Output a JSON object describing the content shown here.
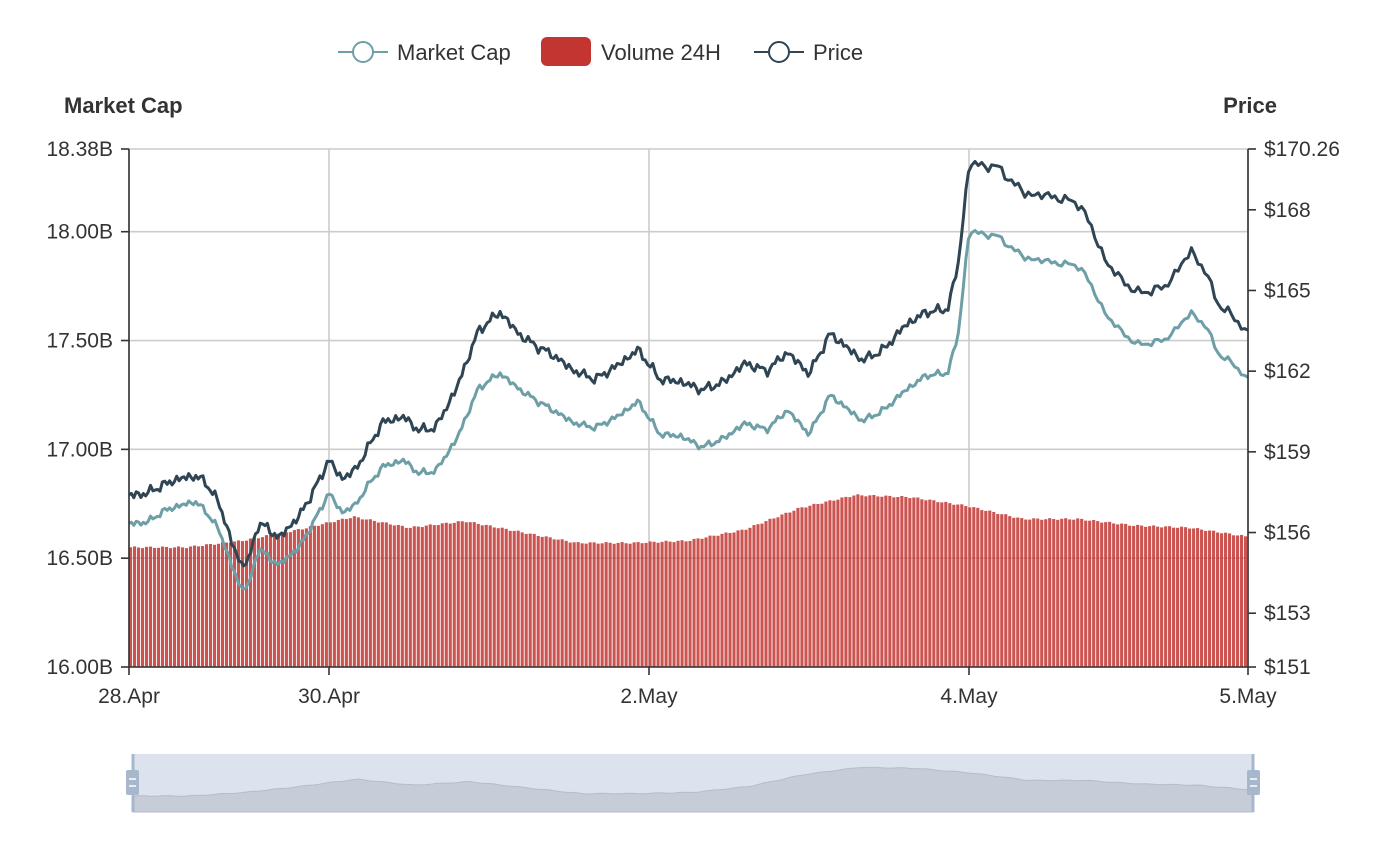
{
  "legend": {
    "market_cap_label": "Market Cap",
    "volume_label": "Volume 24H",
    "price_label": "Price"
  },
  "axes": {
    "left_title": "Market Cap",
    "right_title": "Price"
  },
  "colors": {
    "market_cap": "#6e9fa7",
    "volume": "#c23531",
    "price": "#2f4554",
    "grid": "#cccccc",
    "zoom_bg": "#dde3ee",
    "zoom_area": "#c6cdd8",
    "zoom_handle": "#a7b7cc"
  },
  "chart_data": {
    "type": "line",
    "title": "",
    "x_ticks": [
      "28.Apr",
      "30.Apr",
      "2.May",
      "4.May",
      "5.May"
    ],
    "y_left": {
      "ticks": [
        "18.38B",
        "18.00B",
        "17.50B",
        "17.00B",
        "16.50B",
        "16.00B"
      ],
      "min": 16.0,
      "max": 18.38,
      "unit": "B"
    },
    "y_right": {
      "ticks": [
        "$170.26",
        "$168",
        "$165",
        "$162",
        "$159",
        "$156",
        "$153",
        "$151"
      ],
      "min": 151.0,
      "max": 170.26
    },
    "grid": true,
    "legend_position": "top-center",
    "series": [
      {
        "name": "Market Cap",
        "type": "line",
        "axis": "left",
        "x_day": [
          0,
          0.05,
          0.1,
          0.18,
          0.25,
          0.33,
          0.38,
          0.45,
          0.52,
          0.56,
          0.6,
          0.65,
          0.7,
          0.75,
          0.85,
          0.92,
          1.0,
          1.06,
          1.12,
          1.18,
          1.25,
          1.35,
          1.42,
          1.5,
          1.6,
          1.7,
          1.8,
          1.9,
          1.98,
          2.05,
          2.15,
          2.25,
          2.35,
          2.45,
          2.55,
          2.65,
          2.75,
          2.85,
          2.95,
          3.05,
          3.15,
          3.25,
          3.35,
          3.5,
          3.6,
          3.7,
          3.8,
          3.9,
          3.95,
          4.0,
          4.1,
          4.2,
          4.3,
          4.4,
          4.5,
          4.6,
          4.7,
          4.8,
          4.85,
          4.9,
          4.95,
          5.0
        ],
        "values": [
          16.66,
          16.66,
          16.67,
          16.72,
          16.74,
          16.76,
          16.72,
          16.63,
          16.45,
          16.36,
          16.38,
          16.55,
          16.5,
          16.47,
          16.55,
          16.66,
          16.8,
          16.71,
          16.74,
          16.83,
          16.92,
          16.95,
          16.89,
          16.9,
          17.05,
          17.28,
          17.35,
          17.27,
          17.22,
          17.18,
          17.12,
          17.1,
          17.15,
          17.22,
          17.07,
          17.06,
          17.01,
          17.05,
          17.12,
          17.09,
          17.18,
          17.07,
          17.25,
          17.13,
          17.18,
          17.27,
          17.34,
          17.35,
          17.53,
          18.0,
          17.98,
          17.88,
          17.86,
          17.84,
          17.6,
          17.48,
          17.5,
          17.63,
          17.56,
          17.43,
          17.39,
          17.32
        ]
      },
      {
        "name": "Price",
        "type": "line",
        "axis": "right",
        "x_day": [
          0,
          0.05,
          0.1,
          0.18,
          0.25,
          0.33,
          0.38,
          0.45,
          0.52,
          0.56,
          0.6,
          0.65,
          0.7,
          0.75,
          0.85,
          0.92,
          1.0,
          1.06,
          1.12,
          1.18,
          1.25,
          1.35,
          1.42,
          1.5,
          1.6,
          1.7,
          1.8,
          1.9,
          1.98,
          2.05,
          2.15,
          2.25,
          2.35,
          2.45,
          2.55,
          2.65,
          2.75,
          2.85,
          2.95,
          3.05,
          3.15,
          3.25,
          3.35,
          3.5,
          3.6,
          3.7,
          3.8,
          3.9,
          3.95,
          4.0,
          4.1,
          4.2,
          4.3,
          4.4,
          4.5,
          4.6,
          4.7,
          4.8,
          4.85,
          4.9,
          4.95,
          5.0
        ],
        "values": [
          157.4,
          157.4,
          157.5,
          157.8,
          158.0,
          158.1,
          157.9,
          157.1,
          155.5,
          154.8,
          155.0,
          156.4,
          156.1,
          155.8,
          156.6,
          157.5,
          158.7,
          158.0,
          158.3,
          159.1,
          160.1,
          160.3,
          159.8,
          159.9,
          161.4,
          163.5,
          164.2,
          163.3,
          162.9,
          162.6,
          162.0,
          161.7,
          162.2,
          162.8,
          161.7,
          161.6,
          161.3,
          161.6,
          162.3,
          162.0,
          162.7,
          161.9,
          163.4,
          162.4,
          162.8,
          163.7,
          164.2,
          164.3,
          166.0,
          169.7,
          169.6,
          168.6,
          168.5,
          168.2,
          165.9,
          164.9,
          165.1,
          166.5,
          165.6,
          164.4,
          164.0,
          163.4
        ]
      },
      {
        "name": "Volume 24H",
        "type": "bar",
        "axis": "left",
        "x_day": [
          0,
          0.25,
          0.5,
          0.75,
          1.0,
          1.25,
          1.5,
          1.75,
          2.0,
          2.25,
          2.5,
          2.75,
          3.0,
          3.25,
          3.5,
          3.75,
          4.0,
          4.25,
          4.5,
          4.75,
          5.0
        ],
        "values": [
          16.55,
          16.55,
          16.58,
          16.63,
          16.69,
          16.64,
          16.67,
          16.62,
          16.57,
          16.57,
          16.58,
          16.63,
          16.73,
          16.79,
          16.78,
          16.74,
          16.68,
          16.68,
          16.65,
          16.64,
          16.6
        ]
      }
    ]
  }
}
